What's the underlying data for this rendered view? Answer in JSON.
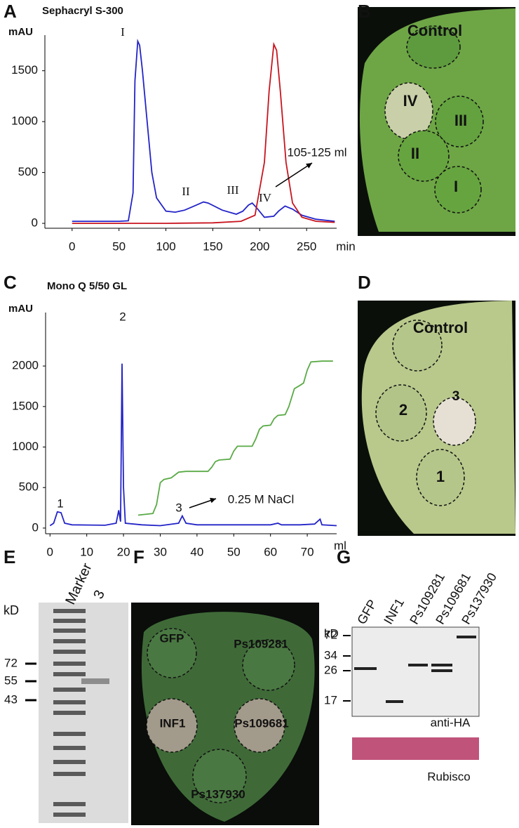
{
  "chart_data": [
    {
      "type": "line",
      "title": "Sephacryl S-300",
      "y_label": "mAU",
      "x_label": "min",
      "xlim": [
        -29,
        282
      ],
      "ylim": [
        -48,
        1850
      ],
      "xticks": [
        0,
        50,
        100,
        150,
        200,
        250
      ],
      "yticks": [
        0,
        500,
        1000,
        1500
      ],
      "series": [
        {
          "color": "#2323c8",
          "x": [
            0,
            50,
            60,
            65,
            67,
            70,
            72,
            75,
            80,
            85,
            90,
            100,
            110,
            120,
            130,
            140,
            145,
            160,
            175,
            182,
            188,
            192,
            197,
            205,
            215,
            220,
            227,
            235,
            245,
            260,
            280
          ],
          "values": [
            20,
            20,
            25,
            300,
            1400,
            1790,
            1750,
            1500,
            1000,
            500,
            250,
            120,
            110,
            130,
            170,
            210,
            200,
            130,
            90,
            120,
            180,
            200,
            150,
            60,
            70,
            120,
            170,
            140,
            80,
            40,
            20
          ]
        },
        {
          "color": "#c8141e",
          "x": [
            0,
            100,
            150,
            180,
            195,
            205,
            210,
            215,
            218,
            222,
            228,
            235,
            245,
            260,
            280
          ],
          "values": [
            0,
            0,
            5,
            20,
            80,
            600,
            1300,
            1760,
            1700,
            1300,
            600,
            200,
            60,
            20,
            10
          ]
        }
      ],
      "annotations": [
        "I",
        "II",
        "III",
        "IV",
        "105-125 ml"
      ]
    },
    {
      "type": "line",
      "title": "Mono Q 5/50 GL",
      "y_label": "mAU",
      "x_label": "ml",
      "xlim": [
        -1.2,
        78
      ],
      "ylim": [
        -70,
        2660
      ],
      "xticks": [
        0,
        10,
        20,
        30,
        40,
        50,
        60,
        70
      ],
      "yticks": [
        0,
        500,
        1000,
        1500,
        2000
      ],
      "series": [
        {
          "color": "#2323c8",
          "x": [
            0,
            1,
            2,
            3,
            4,
            6,
            15,
            18,
            18.7,
            19.2,
            19.6,
            20,
            20.5,
            25,
            30,
            35,
            36,
            37,
            40,
            60,
            62,
            63,
            68,
            72,
            73.5,
            74,
            78
          ],
          "values": [
            30,
            60,
            200,
            190,
            60,
            40,
            35,
            60,
            220,
            80,
            2030,
            500,
            60,
            40,
            30,
            60,
            150,
            60,
            40,
            40,
            60,
            40,
            40,
            50,
            110,
            40,
            30
          ]
        },
        {
          "color": "#5aaa46",
          "x": [
            24,
            28,
            29,
            30,
            31,
            33,
            35,
            37,
            43,
            44,
            45,
            46,
            49,
            50,
            51,
            55,
            56,
            57,
            58,
            60,
            61,
            62,
            64,
            65,
            66.5,
            68,
            69,
            70,
            71,
            74,
            77
          ],
          "values": [
            160,
            180,
            290,
            560,
            600,
            620,
            690,
            700,
            700,
            750,
            820,
            840,
            850,
            950,
            1010,
            1010,
            1100,
            1220,
            1260,
            1270,
            1350,
            1390,
            1400,
            1500,
            1720,
            1760,
            1790,
            1950,
            2050,
            2060,
            2060
          ]
        }
      ],
      "annotations": [
        "1",
        "2",
        "3",
        "0.25 M NaCl"
      ]
    }
  ],
  "panels": {
    "letters": [
      "A",
      "B",
      "C",
      "D",
      "E",
      "F",
      "G"
    ]
  },
  "leaf_b": {
    "labels": [
      "Control",
      "IV",
      "III",
      "II",
      "I"
    ]
  },
  "leaf_d": {
    "labels": [
      "Control",
      "2",
      "3",
      "1"
    ]
  },
  "gel_e": {
    "lanes": [
      "Marker",
      "3"
    ],
    "unit": "kD",
    "markers": [
      72,
      55,
      43
    ]
  },
  "leaf_f": {
    "labels": [
      "GFP",
      "Ps109281",
      "INF1",
      "Ps109681",
      "Ps137930"
    ]
  },
  "blot_g": {
    "unit": "kD",
    "lanes": [
      "GFP",
      "INF1",
      "Ps109281",
      "Ps109681",
      "Ps137930"
    ],
    "markers": [
      72,
      34,
      26,
      17
    ],
    "antibody": "anti-HA",
    "loading": "Rubisco"
  }
}
